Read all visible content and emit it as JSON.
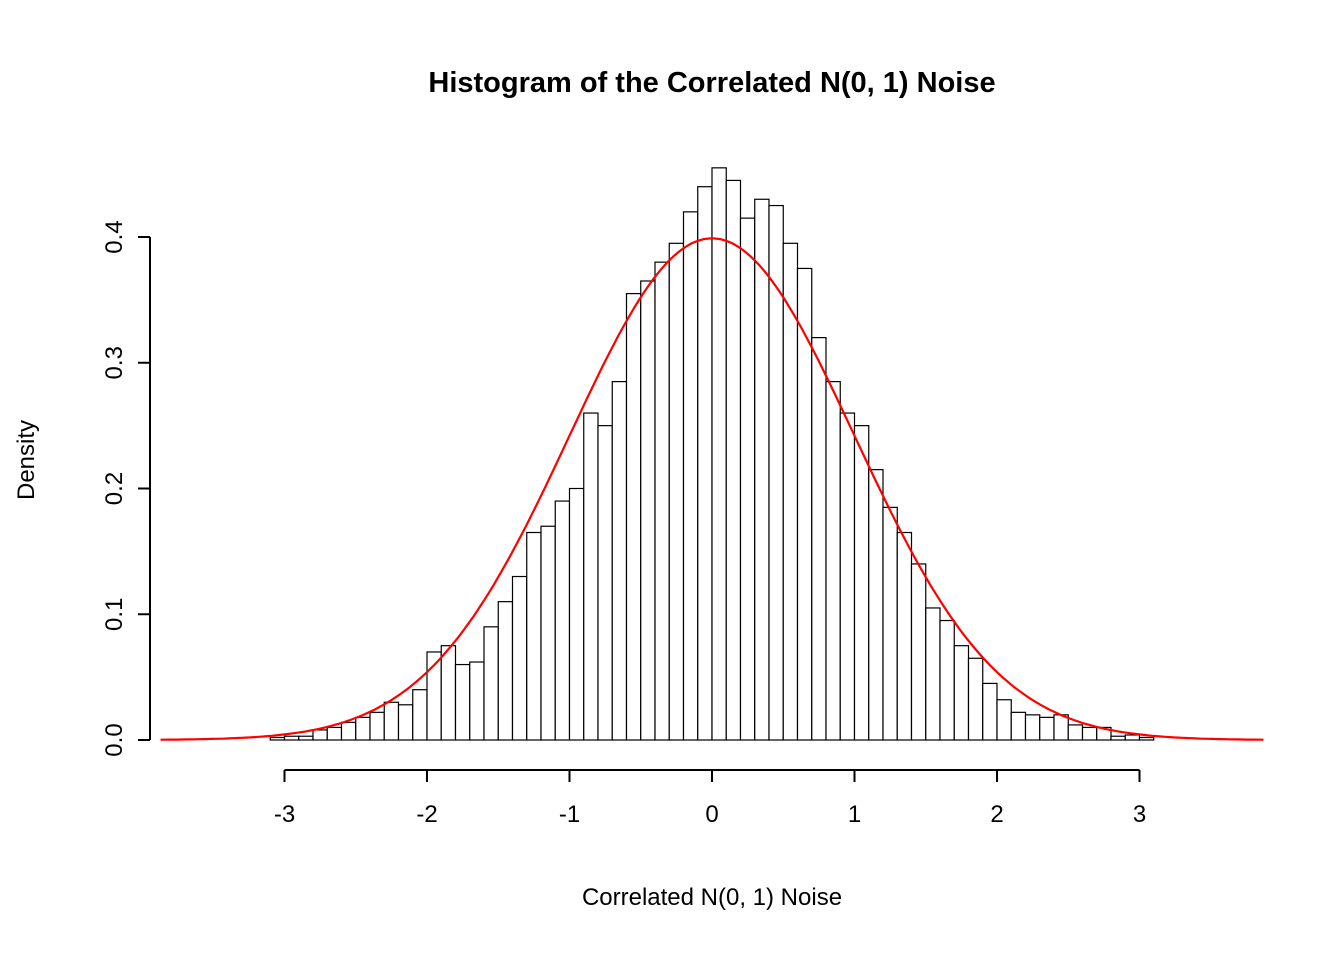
{
  "chart_data": {
    "type": "bar",
    "subtype": "histogram",
    "title": "Histogram of the Correlated N(0, 1) Noise",
    "xlabel": "Correlated N(0, 1) Noise",
    "ylabel": "Density",
    "xlim": [
      -3.87,
      3.87
    ],
    "ylim": [
      0,
      0.46
    ],
    "grid": false,
    "legend": false,
    "x_ticks": [
      {
        "value": -3,
        "label": "-3"
      },
      {
        "value": -2,
        "label": "-2"
      },
      {
        "value": -1,
        "label": "-1"
      },
      {
        "value": 0,
        "label": "0"
      },
      {
        "value": 1,
        "label": "1"
      },
      {
        "value": 2,
        "label": "2"
      },
      {
        "value": 3,
        "label": "3"
      }
    ],
    "y_ticks": [
      {
        "value": 0.0,
        "label": "0.0"
      },
      {
        "value": 0.1,
        "label": "0.1"
      },
      {
        "value": 0.2,
        "label": "0.2"
      },
      {
        "value": 0.3,
        "label": "0.3"
      },
      {
        "value": 0.4,
        "label": "0.4"
      }
    ],
    "bins": {
      "start": -3.1,
      "width": 0.1,
      "heights": [
        0.002,
        0.003,
        0.003,
        0.008,
        0.01,
        0.014,
        0.018,
        0.022,
        0.03,
        0.028,
        0.04,
        0.07,
        0.075,
        0.06,
        0.062,
        0.09,
        0.11,
        0.13,
        0.165,
        0.17,
        0.19,
        0.2,
        0.26,
        0.25,
        0.285,
        0.355,
        0.365,
        0.38,
        0.395,
        0.42,
        0.44,
        0.455,
        0.445,
        0.415,
        0.43,
        0.425,
        0.395,
        0.375,
        0.32,
        0.285,
        0.26,
        0.25,
        0.215,
        0.185,
        0.165,
        0.14,
        0.105,
        0.095,
        0.075,
        0.065,
        0.045,
        0.032,
        0.022,
        0.02,
        0.018,
        0.02,
        0.012,
        0.01,
        0.01,
        0.003,
        0.004,
        0.002
      ]
    },
    "curve": {
      "name": "standard-normal-density",
      "mean": 0,
      "sd": 1,
      "x_min": -3.87,
      "x_max": 3.87,
      "peak": 0.3989,
      "color": "#FF0000"
    },
    "style": {
      "bar_fill": "#FFFFFF",
      "bar_stroke": "#000000",
      "axis_color": "#000000",
      "text_color": "#000000",
      "background": "#FFFFFF"
    }
  }
}
